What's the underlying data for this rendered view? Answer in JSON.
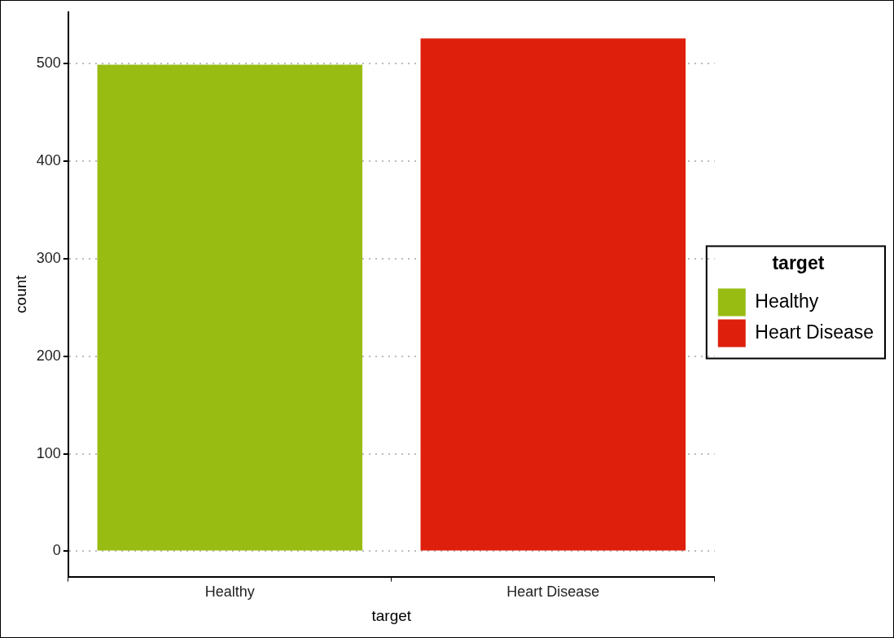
{
  "chart_data": {
    "type": "bar",
    "xlabel": "target",
    "ylabel": "count",
    "legend_title": "target",
    "categories": [
      "Healthy",
      "Heart Disease"
    ],
    "series": [
      {
        "name": "Healthy",
        "color": "#99bc13",
        "values": [
          499,
          null
        ]
      },
      {
        "name": "Heart Disease",
        "color": "#de1f0c",
        "values": [
          null,
          526
        ]
      }
    ],
    "ylim": [
      -26,
      553
    ],
    "yticks": [
      0,
      100,
      200,
      300,
      400,
      500
    ],
    "grid": "y",
    "legend": "right"
  }
}
